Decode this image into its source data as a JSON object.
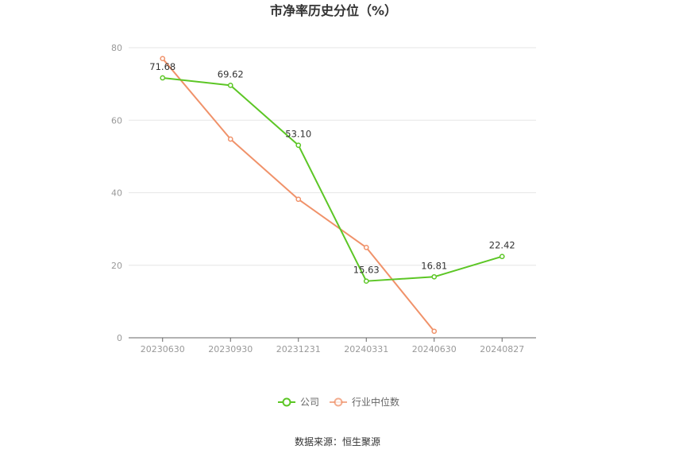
{
  "chart_data": {
    "type": "line",
    "title": "市净率历史分位（%）",
    "categories": [
      "20230630",
      "20230930",
      "20231231",
      "20240331",
      "20240630",
      "20240827"
    ],
    "ylim": [
      0,
      80
    ],
    "yticks": [
      0,
      20,
      40,
      60,
      80
    ],
    "grid": true,
    "legend_position": "bottom-center",
    "series": [
      {
        "name": "公司",
        "color": "#5cc625",
        "values": [
          71.68,
          69.62,
          53.1,
          15.63,
          16.81,
          22.42
        ],
        "labels": [
          "71.68",
          "69.62",
          "53.10",
          "15.63",
          "16.81",
          "22.42"
        ]
      },
      {
        "name": "行业中位数",
        "color": "#f0926a",
        "values": [
          77.0,
          54.8,
          38.2,
          24.9,
          1.8,
          null
        ]
      }
    ]
  },
  "source_text": "数据来源：恒生聚源"
}
